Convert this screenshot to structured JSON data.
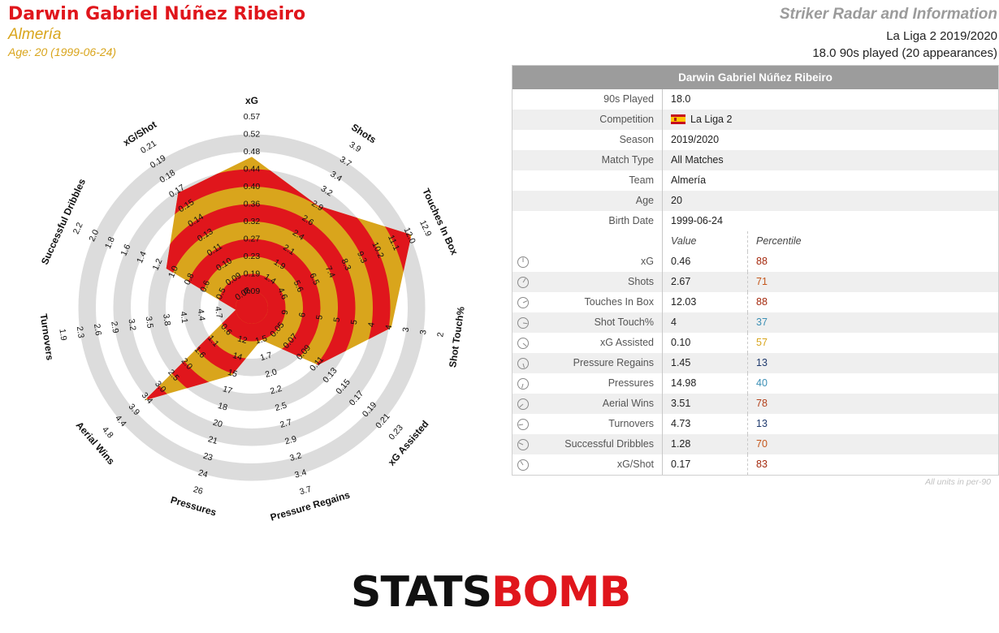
{
  "header": {
    "player_name": "Darwin Gabriel Núñez Ribeiro",
    "team": "Almería",
    "age_line": "Age: 20 (1999-06-24)",
    "radar_title": "Striker Radar and Information",
    "league_season": "La Liga 2 2019/2020",
    "played_line": "18.0 90s played (20 appearances)"
  },
  "table": {
    "title": "Darwin Gabriel Núñez Ribeiro",
    "info_rows": [
      {
        "label": "90s Played",
        "value": "18.0"
      },
      {
        "label": "Competition",
        "value": "La Liga 2",
        "flag": "spain-flag"
      },
      {
        "label": "Season",
        "value": "2019/2020"
      },
      {
        "label": "Match Type",
        "value": "All Matches"
      },
      {
        "label": "Team",
        "value": "Almería"
      },
      {
        "label": "Age",
        "value": "20"
      },
      {
        "label": "Birth Date",
        "value": "1999-06-24"
      }
    ],
    "value_header": "Value",
    "percentile_header": "Percentile",
    "metric_rows": [
      {
        "label": "xG",
        "value": "0.46",
        "percentile": "88",
        "color": "#a52a0e"
      },
      {
        "label": "Shots",
        "value": "2.67",
        "percentile": "71",
        "color": "#c5561b"
      },
      {
        "label": "Touches In Box",
        "value": "12.03",
        "percentile": "88",
        "color": "#a52a0e"
      },
      {
        "label": "Shot Touch%",
        "value": "4",
        "percentile": "37",
        "color": "#3b8fb5"
      },
      {
        "label": "xG Assisted",
        "value": "0.10",
        "percentile": "57",
        "color": "#d9a51c"
      },
      {
        "label": "Pressure Regains",
        "value": "1.45",
        "percentile": "13",
        "color": "#1f3a6e"
      },
      {
        "label": "Pressures",
        "value": "14.98",
        "percentile": "40",
        "color": "#3b8fb5"
      },
      {
        "label": "Aerial Wins",
        "value": "3.51",
        "percentile": "78",
        "color": "#b3401a"
      },
      {
        "label": "Turnovers",
        "value": "4.73",
        "percentile": "13",
        "color": "#1f3a6e"
      },
      {
        "label": "Successful Dribbles",
        "value": "1.28",
        "percentile": "70",
        "color": "#c5561b"
      },
      {
        "label": "xG/Shot",
        "value": "0.17",
        "percentile": "83",
        "color": "#a52a0e"
      }
    ],
    "footnote": "All units in per-90"
  },
  "logo": {
    "part1": "STATS",
    "part2": "BOMB"
  },
  "chart_data": {
    "type": "radar",
    "colors": {
      "fill_outer": "#d9a51c",
      "fill_inner": "#e0161c",
      "rings": "#dcdcdc"
    },
    "axes": [
      {
        "name": "xG",
        "value": 0.46,
        "min": 0.09,
        "max": 0.57,
        "reversed": false,
        "ticks": [
          "0.09",
          "0.19",
          "0.23",
          "0.27",
          "0.32",
          "0.36",
          "0.40",
          "0.44",
          "0.48",
          "0.52",
          "0.57"
        ]
      },
      {
        "name": "Shots",
        "value": 2.67,
        "min": 0.8,
        "max": 3.9,
        "reversed": false,
        "ticks": [
          "1.4",
          "1.9",
          "2.1",
          "2.4",
          "2.6",
          "2.9",
          "3.2",
          "3.4",
          "3.7",
          "3.9"
        ]
      },
      {
        "name": "Touches In Box",
        "value": 12.03,
        "min": 3.0,
        "max": 12.9,
        "reversed": false,
        "ticks": [
          "4.6",
          "5.6",
          "6.5",
          "7.4",
          "8.3",
          "9.3",
          "10.2",
          "11.1",
          "12.0",
          "12.9"
        ]
      },
      {
        "name": "Shot Touch%",
        "value": 4,
        "min": 2,
        "max": 9,
        "reversed": true,
        "ticks": [
          "9",
          "6",
          "5",
          "5",
          "5",
          "4",
          "4",
          "3",
          "3",
          "2"
        ]
      },
      {
        "name": "xG Assisted",
        "value": 0.1,
        "min": 0.01,
        "max": 0.23,
        "reversed": false,
        "ticks": [
          "0.05",
          "0.07",
          "0.09",
          "0.11",
          "0.13",
          "0.15",
          "0.17",
          "0.19",
          "0.21",
          "0.23"
        ]
      },
      {
        "name": "Pressure Regains",
        "value": 1.45,
        "min": 1.2,
        "max": 3.7,
        "reversed": false,
        "ticks": [
          "1.5",
          "1.7",
          "2.0",
          "2.2",
          "2.5",
          "2.7",
          "2.9",
          "3.2",
          "3.4",
          "3.7"
        ]
      },
      {
        "name": "Pressures",
        "value": 14.98,
        "min": 10,
        "max": 26,
        "reversed": false,
        "ticks": [
          "12",
          "14",
          "15",
          "17",
          "18",
          "20",
          "21",
          "23",
          "24",
          "26"
        ]
      },
      {
        "name": "Aerial Wins",
        "value": 3.51,
        "min": 0.2,
        "max": 4.8,
        "reversed": false,
        "ticks": [
          "0.6",
          "1.1",
          "1.6",
          "2.0",
          "2.5",
          "3.0",
          "3.4",
          "3.9",
          "4.4",
          "4.8"
        ]
      },
      {
        "name": "Turnovers",
        "value": 4.73,
        "min": 1.9,
        "max": 4.7,
        "reversed": true,
        "ticks": [
          "4.7",
          "4.4",
          "4.1",
          "3.8",
          "3.5",
          "3.2",
          "2.9",
          "2.6",
          "2.3",
          "1.9"
        ]
      },
      {
        "name": "Successful Dribbles",
        "value": 1.28,
        "min": 0.3,
        "max": 2.5,
        "reversed": false,
        "ticks": [
          "0.5",
          "0.6",
          "0.8",
          "1.0",
          "1.2",
          "1.4",
          "1.6",
          "1.8",
          "2.0",
          "2.2"
        ]
      },
      {
        "name": "xG/Shot",
        "value": 0.17,
        "min": 0.06,
        "max": 0.22,
        "reversed": false,
        "ticks": [
          "0.08",
          "0.09",
          "0.10",
          "0.11",
          "0.13",
          "0.14",
          "0.15",
          "0.17",
          "0.18",
          "0.19",
          "0.21"
        ]
      }
    ]
  }
}
